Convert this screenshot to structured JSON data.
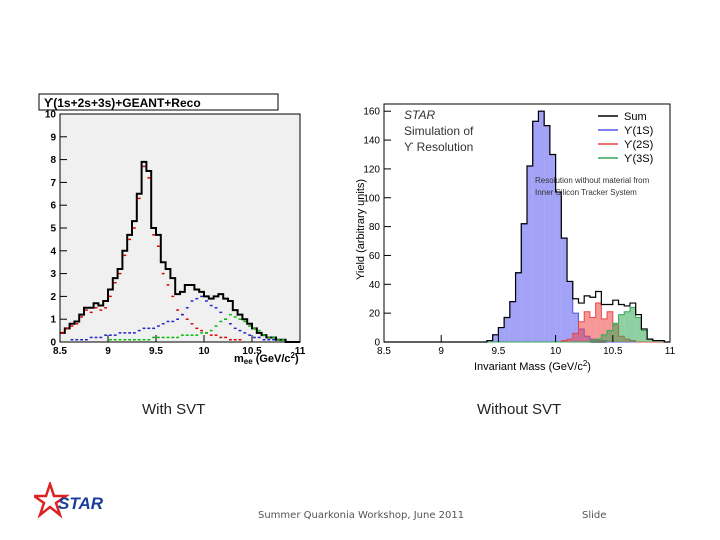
{
  "slide": {
    "caption_left": "With SVT",
    "caption_right": "Without SVT",
    "footer": "Summer Quarkonia Workshop, June 2011",
    "slide_label": "Slide",
    "logo_text": "STAR"
  },
  "chart_data": [
    {
      "type": "histogram",
      "title": "ϒ(1s+2s+3s)+GEANT+Reco",
      "xlabel": "m_ee (GeV/c²)",
      "xlabel_main": "m",
      "xlabel_sub": "ee",
      "xlabel_unit": "(GeV/c",
      "xlabel_sup": "2",
      "xlabel_close": ")",
      "ylabel": "",
      "xlim": [
        8.5,
        11
      ],
      "ylim": [
        0,
        10
      ],
      "xticks": [
        "8.5",
        "9",
        "9.5",
        "10",
        "10.5",
        "11"
      ],
      "yticks": [
        "0",
        "1",
        "2",
        "3",
        "4",
        "5",
        "6",
        "7",
        "8",
        "9",
        "10"
      ],
      "bin_edges_start": 8.5,
      "bin_width": 0.05,
      "series": [
        {
          "name": "Sum",
          "color": "#000000",
          "style": "step",
          "values": [
            0.4,
            0.6,
            0.8,
            0.9,
            1.2,
            1.5,
            1.5,
            1.7,
            1.6,
            1.8,
            2.3,
            2.8,
            3.2,
            4.0,
            4.7,
            5.3,
            6.5,
            7.9,
            7.5,
            5.0,
            4.7,
            3.5,
            3.2,
            2.8,
            2.1,
            2.2,
            2.5,
            2.5,
            2.3,
            2.2,
            2.0,
            1.9,
            2.0,
            2.1,
            1.9,
            1.8,
            1.4,
            1.2,
            1.0,
            0.8,
            0.6,
            0.4,
            0.3,
            0.2,
            0.2,
            0.1,
            0.1,
            0.0,
            0.0,
            0.0
          ]
        },
        {
          "name": "ϒ(1S)",
          "color": "#dd0000",
          "style": "dash",
          "values": [
            0.4,
            0.6,
            0.7,
            0.8,
            1.1,
            1.4,
            1.3,
            1.5,
            1.4,
            1.5,
            2.0,
            2.6,
            3.0,
            3.8,
            4.5,
            5.0,
            6.3,
            7.7,
            7.2,
            4.7,
            4.2,
            3.0,
            2.5,
            2.0,
            1.4,
            1.2,
            1.0,
            0.8,
            0.6,
            0.5,
            0.4,
            0.3,
            0.3,
            0.2,
            0.2,
            0.1,
            0.1,
            0.1,
            0.0,
            0.0,
            0.0,
            0.0,
            0.0,
            0.0,
            0.0,
            0.0,
            0.0,
            0.0,
            0.0,
            0.0
          ]
        },
        {
          "name": "ϒ(2S)",
          "color": "#2222cc",
          "style": "dash",
          "values": [
            0.0,
            0.0,
            0.1,
            0.1,
            0.1,
            0.1,
            0.2,
            0.2,
            0.2,
            0.3,
            0.3,
            0.3,
            0.4,
            0.4,
            0.4,
            0.4,
            0.5,
            0.6,
            0.6,
            0.6,
            0.7,
            0.8,
            0.9,
            0.9,
            1.0,
            1.2,
            1.5,
            1.8,
            1.9,
            2.0,
            1.8,
            1.6,
            1.5,
            1.3,
            1.0,
            0.8,
            0.6,
            0.5,
            0.4,
            0.3,
            0.2,
            0.2,
            0.1,
            0.1,
            0.1,
            0.0,
            0.0,
            0.0,
            0.0,
            0.0
          ]
        },
        {
          "name": "ϒ(3S)",
          "color": "#00bb00",
          "style": "dash",
          "values": [
            0.0,
            0.0,
            0.0,
            0.0,
            0.0,
            0.0,
            0.0,
            0.0,
            0.0,
            0.0,
            0.1,
            0.1,
            0.1,
            0.1,
            0.1,
            0.1,
            0.1,
            0.1,
            0.1,
            0.2,
            0.2,
            0.2,
            0.2,
            0.2,
            0.2,
            0.3,
            0.3,
            0.3,
            0.3,
            0.4,
            0.4,
            0.5,
            0.7,
            0.9,
            1.0,
            1.2,
            1.1,
            1.0,
            0.9,
            0.7,
            0.6,
            0.5,
            0.3,
            0.2,
            0.2,
            0.1,
            0.1,
            0.0,
            0.0,
            0.0
          ]
        }
      ]
    },
    {
      "type": "histogram",
      "title": "",
      "annotation": [
        "STAR",
        "Simulation of",
        "ϒ Resolution"
      ],
      "note": [
        "Resolution without material from",
        "Inner Silicon Tracker System"
      ],
      "xlabel": "Invariant Mass (GeV/c²)",
      "xlabel_main": "Invariant Mass (GeV/c",
      "xlabel_sup": "2",
      "xlabel_close": ")",
      "ylabel": "Yield (arbitrary units)",
      "xlim": [
        8.5,
        11
      ],
      "ylim": [
        0,
        165
      ],
      "xticks": [
        "8.5",
        "9",
        "9.5",
        "10",
        "10.5",
        "11"
      ],
      "yticks": [
        "0",
        "20",
        "40",
        "60",
        "80",
        "100",
        "120",
        "140",
        "160"
      ],
      "legend_position": "top-right",
      "bin_edges_start": 8.5,
      "bin_width": 0.05,
      "series": [
        {
          "name": "Sum",
          "color": "#000000",
          "style": "step",
          "values": [
            0,
            0,
            0,
            0,
            0,
            0,
            0,
            0,
            0,
            0,
            0,
            0,
            0,
            0,
            0,
            0,
            0,
            0,
            1,
            5,
            10,
            17,
            28,
            48,
            82,
            122,
            153,
            160,
            150,
            130,
            104,
            72,
            42,
            30,
            27,
            32,
            31,
            35,
            26,
            26,
            29,
            26,
            25,
            27,
            19,
            9,
            2,
            1,
            1,
            0
          ]
        },
        {
          "name": "ϒ(1S)",
          "color": "#5555ee",
          "style": "fill",
          "values": [
            0,
            0,
            0,
            0,
            0,
            0,
            0,
            0,
            0,
            0,
            0,
            0,
            0,
            0,
            0,
            0,
            0,
            0,
            1,
            5,
            10,
            17,
            28,
            48,
            82,
            122,
            153,
            160,
            150,
            130,
            104,
            72,
            42,
            20,
            9,
            4,
            2,
            1,
            1,
            0,
            0,
            0,
            0,
            0,
            0,
            0,
            0,
            0,
            0,
            0
          ]
        },
        {
          "name": "ϒ(2S)",
          "color": "#ee4444",
          "style": "fill",
          "values": [
            0,
            0,
            0,
            0,
            0,
            0,
            0,
            0,
            0,
            0,
            0,
            0,
            0,
            0,
            0,
            0,
            0,
            0,
            0,
            0,
            0,
            0,
            0,
            0,
            0,
            0,
            0,
            0,
            0,
            0,
            0,
            1,
            2,
            6,
            14,
            21,
            17,
            27,
            16,
            21,
            12,
            4,
            2,
            1,
            0,
            0,
            0,
            0,
            0,
            0
          ]
        },
        {
          "name": "ϒ(3S)",
          "color": "#33aa55",
          "style": "fill",
          "values": [
            0,
            0,
            0,
            0,
            0,
            0,
            0,
            0,
            0,
            0,
            0,
            0,
            0,
            0,
            0,
            0,
            0,
            0,
            0,
            0,
            0,
            0,
            0,
            0,
            0,
            0,
            0,
            0,
            0,
            0,
            0,
            0,
            0,
            0,
            0,
            0,
            1,
            2,
            5,
            8,
            13,
            19,
            21,
            24,
            17,
            8,
            2,
            1,
            1,
            0
          ]
        }
      ]
    }
  ]
}
